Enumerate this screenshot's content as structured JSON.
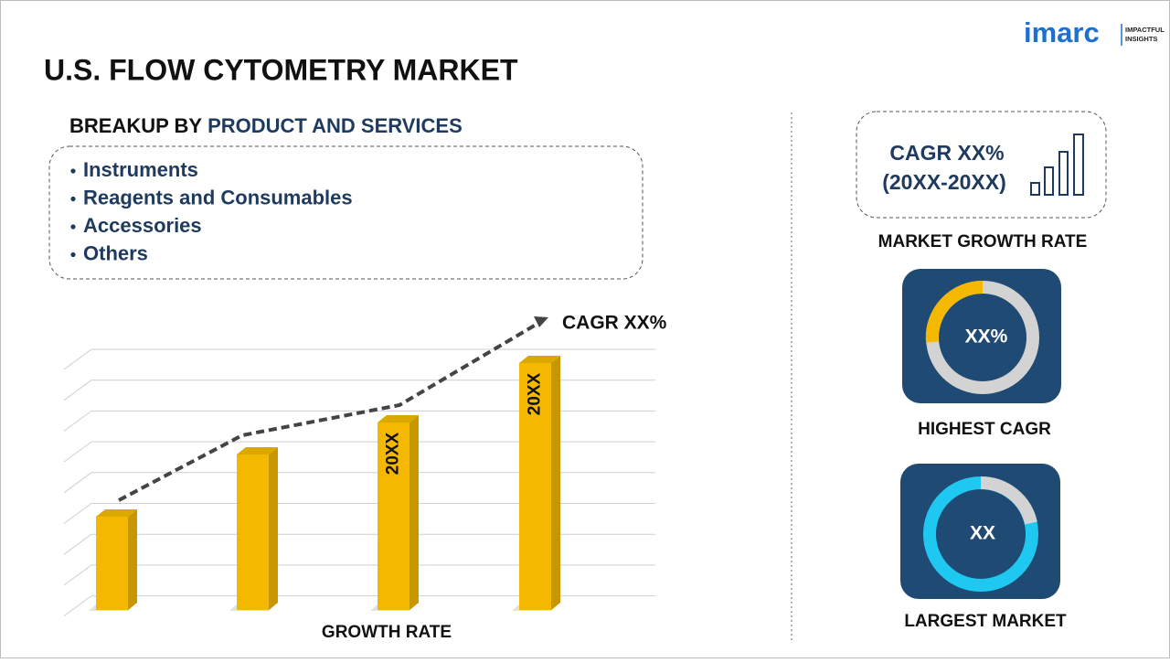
{
  "header": {
    "title": "U.S. FLOW CYTOMETRY MARKET",
    "logo": {
      "brand": "imarc",
      "tagline": [
        "IMPACTFUL",
        "INSIGHTS"
      ]
    }
  },
  "breakup": {
    "label": "BREAKUP BY",
    "dimension": "PRODUCT AND SERVICES",
    "items": [
      "Instruments",
      "Reagents and Consumables",
      "Accessories",
      "Others"
    ]
  },
  "growth_chart": {
    "bar_labels": [
      "20XX",
      "20XX"
    ],
    "trend_label": "CAGR XX%",
    "caption": "GROWTH RATE"
  },
  "panels": {
    "growth": {
      "value": "CAGR XX%",
      "period": "(20XX-20XX)",
      "caption": "MARKET GROWTH RATE"
    },
    "highest": {
      "value": "XX%",
      "caption": "HIGHEST CAGR"
    },
    "largest": {
      "value": "XX",
      "caption": "LARGEST MARKET"
    }
  }
}
